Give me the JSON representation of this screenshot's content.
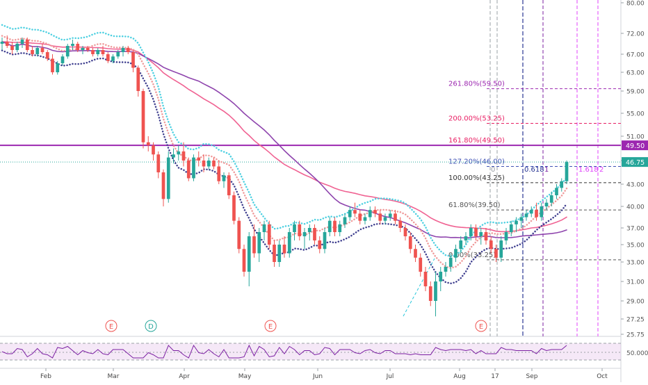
{
  "chart_data": {
    "type": "candlestick",
    "months": [
      "Feb",
      "Mar",
      "Apr",
      "May",
      "Jun",
      "Jul",
      "Aug",
      "17",
      "Sep",
      "Oct"
    ],
    "price_ticks": [
      "80.00",
      "72.00",
      "67.00",
      "63.00",
      "59.00",
      "55.00",
      "51.00",
      "47.00",
      "43.00",
      "40.00",
      "37.00",
      "35.00",
      "33.00",
      "31.00",
      "29.00",
      "27.25",
      "25.75"
    ],
    "last_price": "46.75",
    "level_price": "49.50",
    "fib_levels": [
      {
        "label": "261.80%(59.50)",
        "price": 59.5,
        "color": "#9c27b0"
      },
      {
        "label": "200.00%(53.25)",
        "price": 53.25,
        "color": "#e91e63"
      },
      {
        "label": "161.80%(49.50)",
        "price": 49.5,
        "color": "#e91e63"
      },
      {
        "label": "127.20%(46.00)",
        "price": 46.0,
        "color": "#3f51b5"
      },
      {
        "label": "100.00%(43.25)",
        "price": 43.25,
        "color": "#333333"
      },
      {
        "label": "61.80%(39.50)",
        "price": 39.5,
        "color": "#555555"
      },
      {
        "label": "0.00%(33.25)",
        "price": 33.25,
        "color": "#555555"
      }
    ],
    "fib_time": [
      "0",
      "0.618",
      "1",
      "1.618",
      "2"
    ],
    "events": [
      {
        "label": "E",
        "color": "#ef5350"
      },
      {
        "label": "D",
        "color": "#26a69a"
      },
      {
        "label": "E",
        "color": "#ef5350"
      },
      {
        "label": "E",
        "color": "#ef5350"
      }
    ],
    "oscillator": {
      "label": "50.0000",
      "ticks": [
        "50.0000"
      ]
    },
    "candles": [
      [
        69.5,
        71,
        68,
        70
      ],
      [
        70,
        71.5,
        68.5,
        69
      ],
      [
        69,
        70,
        67,
        68
      ],
      [
        68,
        70,
        67.5,
        69.5
      ],
      [
        69.5,
        71,
        68.5,
        70.5
      ],
      [
        70.5,
        71,
        67.5,
        68
      ],
      [
        68,
        69,
        66.5,
        67
      ],
      [
        67,
        69,
        66.5,
        68.5
      ],
      [
        68.5,
        69.5,
        67,
        67.5
      ],
      [
        67.5,
        68,
        65.5,
        66
      ],
      [
        66,
        67,
        62.5,
        63
      ],
      [
        63,
        65.5,
        62.5,
        65
      ],
      [
        65,
        67,
        64.5,
        66.5
      ],
      [
        66.5,
        69.5,
        66,
        69
      ],
      [
        69,
        70.5,
        68,
        69.5
      ],
      [
        69.5,
        70,
        67.5,
        68
      ],
      [
        68,
        69,
        67,
        68.5
      ],
      [
        68.5,
        69,
        67.5,
        68
      ],
      [
        68,
        68.5,
        66.5,
        67
      ],
      [
        67,
        68.5,
        66.5,
        68
      ],
      [
        68,
        69,
        66.5,
        67
      ],
      [
        67,
        67.5,
        65,
        65.5
      ],
      [
        65.5,
        67,
        65,
        66.5
      ],
      [
        66.5,
        68,
        66,
        67.5
      ],
      [
        67.5,
        69,
        66.5,
        68.5
      ],
      [
        68.5,
        69,
        67,
        67.5
      ],
      [
        67.5,
        68,
        63,
        64
      ],
      [
        64,
        64.5,
        58,
        59
      ],
      [
        59,
        59.5,
        49,
        50
      ],
      [
        50,
        51,
        48.5,
        49.5
      ],
      [
        49.5,
        50,
        47,
        48
      ],
      [
        48,
        48.5,
        44,
        45
      ],
      [
        45,
        45.5,
        40,
        41
      ],
      [
        41,
        48.5,
        40.5,
        47.5
      ],
      [
        47.5,
        49,
        46.5,
        48
      ],
      [
        48,
        49.5,
        47,
        48.5
      ],
      [
        48.5,
        50,
        46,
        47
      ],
      [
        47,
        47.5,
        43.5,
        44
      ],
      [
        44,
        48,
        43.5,
        47.5
      ],
      [
        47.5,
        48.5,
        46,
        47
      ],
      [
        47,
        48,
        45,
        46
      ],
      [
        46,
        47.5,
        45.5,
        47
      ],
      [
        47,
        47.5,
        45.5,
        46
      ],
      [
        46,
        47,
        43,
        43.5
      ],
      [
        43.5,
        45,
        42.5,
        44.5
      ],
      [
        44.5,
        45,
        41,
        41.5
      ],
      [
        41.5,
        42,
        37.5,
        38
      ],
      [
        38,
        38.5,
        34,
        34.5
      ],
      [
        34.5,
        35,
        31.5,
        32
      ],
      [
        32,
        36.5,
        30.5,
        36
      ],
      [
        36,
        37.5,
        33.5,
        34
      ],
      [
        34,
        37,
        33,
        36.5
      ],
      [
        36.5,
        38,
        35.5,
        37.5
      ],
      [
        37.5,
        38,
        34.5,
        35
      ],
      [
        35,
        35.5,
        32.5,
        33
      ],
      [
        33,
        35.5,
        32.5,
        35
      ],
      [
        35,
        36,
        33.5,
        34
      ],
      [
        34,
        37,
        33.5,
        36.5
      ],
      [
        36.5,
        38,
        35.5,
        37.5
      ],
      [
        37.5,
        38,
        35.5,
        36
      ],
      [
        36,
        37,
        34.5,
        36.5
      ],
      [
        36.5,
        37.5,
        35.5,
        37
      ],
      [
        37,
        37.5,
        35,
        35.5
      ],
      [
        35.5,
        36,
        34,
        34.5
      ],
      [
        34.5,
        37,
        34,
        36.5
      ],
      [
        36.5,
        38.5,
        36,
        38
      ],
      [
        38,
        38.5,
        36,
        36.5
      ],
      [
        36.5,
        38,
        36,
        37.5
      ],
      [
        37.5,
        39,
        37,
        38.5
      ],
      [
        38.5,
        40,
        38,
        39.5
      ],
      [
        39.5,
        40.5,
        38.5,
        39
      ],
      [
        39,
        39.5,
        37.5,
        38
      ],
      [
        38,
        39,
        37.5,
        38.5
      ],
      [
        38.5,
        40,
        38,
        39.5
      ],
      [
        39.5,
        40,
        38.5,
        39
      ],
      [
        39,
        39.5,
        37.5,
        38
      ],
      [
        38,
        39,
        37.5,
        38.5
      ],
      [
        38.5,
        39.5,
        38,
        39
      ],
      [
        39,
        39.5,
        37.5,
        38
      ],
      [
        38,
        38.5,
        36.5,
        37
      ],
      [
        37,
        37.5,
        35.5,
        36
      ],
      [
        36,
        36.5,
        34,
        34.5
      ],
      [
        34.5,
        35,
        33,
        33.5
      ],
      [
        33.5,
        34,
        31.5,
        32
      ],
      [
        32,
        32.5,
        30,
        30.5
      ],
      [
        30.5,
        31,
        28.5,
        29
      ],
      [
        29,
        32,
        27.5,
        31
      ],
      [
        31,
        32.5,
        30,
        32
      ],
      [
        32,
        33,
        31.5,
        32.5
      ],
      [
        32.5,
        34,
        32,
        33.5
      ],
      [
        33.5,
        35,
        33,
        34.5
      ],
      [
        34.5,
        36,
        34,
        35.5
      ],
      [
        35.5,
        36.5,
        35,
        36
      ],
      [
        36,
        37.5,
        35.5,
        37
      ],
      [
        37,
        37.5,
        35.5,
        36
      ],
      [
        36,
        37,
        35,
        36.5
      ],
      [
        36.5,
        37,
        35,
        35.5
      ],
      [
        35.5,
        36,
        34,
        34.5
      ],
      [
        34.5,
        35,
        33,
        33.5
      ],
      [
        33.5,
        36,
        33,
        35.5
      ],
      [
        35.5,
        37,
        35,
        36.5
      ],
      [
        36.5,
        38,
        36,
        37.5
      ],
      [
        37.5,
        38.5,
        36.5,
        38
      ],
      [
        38,
        39,
        37,
        38.5
      ],
      [
        38.5,
        39.5,
        38,
        39
      ],
      [
        39,
        40,
        38.5,
        39.5
      ],
      [
        39.5,
        40.5,
        38,
        38.5
      ],
      [
        38.5,
        40.5,
        38,
        40
      ],
      [
        40,
        41,
        39.5,
        40.5
      ],
      [
        40.5,
        42,
        40,
        41.5
      ],
      [
        41.5,
        43,
        41,
        42.5
      ],
      [
        42.5,
        44,
        42,
        43.5
      ],
      [
        43.5,
        47,
        43,
        46.75
      ]
    ]
  }
}
